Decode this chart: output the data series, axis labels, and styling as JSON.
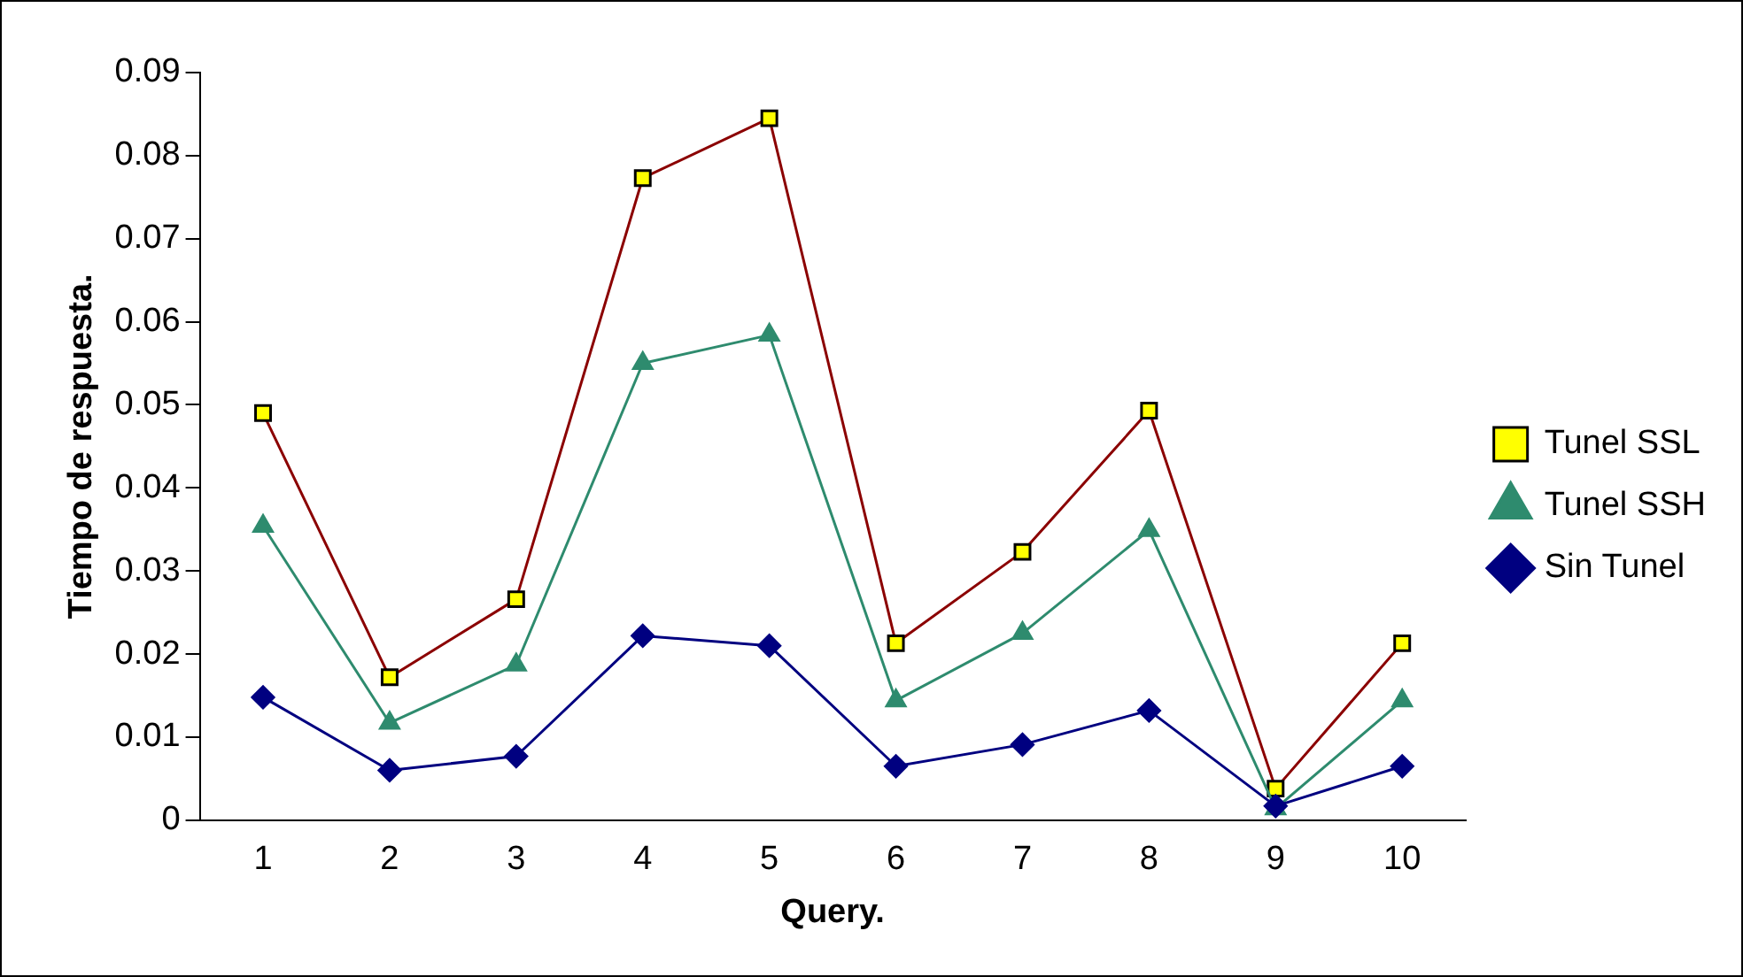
{
  "chart_data": {
    "type": "line",
    "xlabel": "Query.",
    "ylabel": "Tiempo de respuesta.",
    "categories": [
      "1",
      "2",
      "3",
      "4",
      "5",
      "6",
      "7",
      "8",
      "9",
      "10"
    ],
    "series": [
      {
        "name": "Tunel SSL",
        "color": "#8b0000",
        "marker": "square",
        "values": [
          0.049,
          0.0172,
          0.0266,
          0.0773,
          0.0845,
          0.0213,
          0.0323,
          0.0493,
          0.0038,
          0.0213
        ]
      },
      {
        "name": "Tunel SSH",
        "color": "#2e8b6e",
        "marker": "triangle",
        "values": [
          0.0354,
          0.0117,
          0.0187,
          0.055,
          0.0584,
          0.0144,
          0.0225,
          0.0349,
          0.0014,
          0.0144
        ]
      },
      {
        "name": "Sin Tunel",
        "color": "#000080",
        "marker": "diamond",
        "values": [
          0.0148,
          0.006,
          0.0077,
          0.0222,
          0.021,
          0.0065,
          0.0091,
          0.0132,
          0.0017,
          0.0065
        ]
      }
    ],
    "ylim": [
      0,
      0.09
    ],
    "yticks": [
      0,
      0.01,
      0.02,
      0.03,
      0.04,
      0.05,
      0.06,
      0.07,
      0.08,
      0.09
    ],
    "grid": false,
    "legend": "right",
    "line_style": "solid"
  }
}
